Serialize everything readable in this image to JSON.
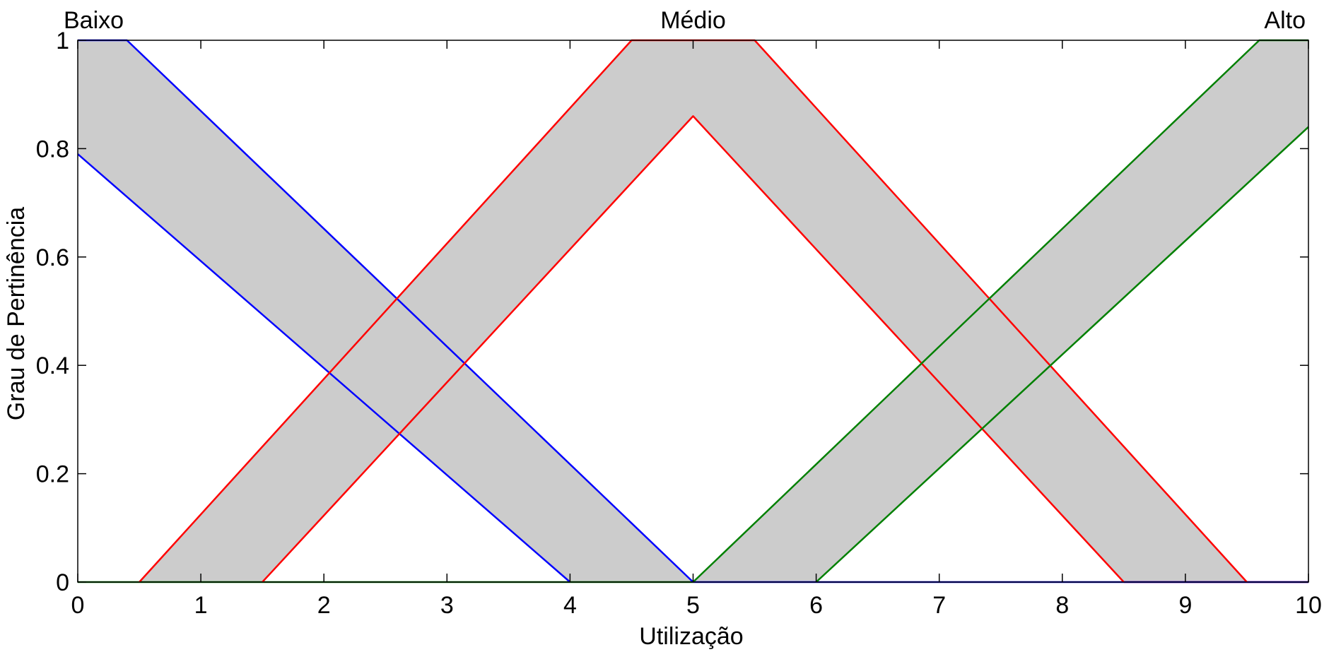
{
  "chart_data": {
    "type": "line",
    "title": "",
    "xlabel": "Utilização",
    "ylabel": "Grau de Pertinência",
    "xlim": [
      0,
      10
    ],
    "ylim": [
      0,
      1
    ],
    "x_ticks": [
      0,
      1,
      2,
      3,
      4,
      5,
      6,
      7,
      8,
      9,
      10
    ],
    "y_ticks": [
      0,
      0.2,
      0.4,
      0.6,
      0.8,
      1
    ],
    "grid": false,
    "fill_color": "#cccccc",
    "category_labels": [
      "Baixo",
      "Médio",
      "Alto"
    ],
    "series": [
      {
        "color": "#0000ff",
        "fill_between": [
          0,
          1
        ],
        "lines": [
          {
            "x": [
              0,
              0.4,
              5
            ],
            "y": [
              1,
              1,
              0
            ]
          },
          {
            "x": [
              0,
              4
            ],
            "y": [
              0.79,
              0
            ]
          }
        ]
      },
      {
        "color": "#ff0000",
        "fill_between": [
          0,
          1
        ],
        "lines": [
          {
            "x": [
              0.5,
              4.5,
              5.5,
              9.5
            ],
            "y": [
              0,
              1,
              1,
              0
            ]
          },
          {
            "x": [
              1.5,
              5,
              8.5
            ],
            "y": [
              0,
              0.86,
              0
            ]
          }
        ]
      },
      {
        "color": "#008000",
        "fill_between": [
          0,
          1
        ],
        "lines": [
          {
            "x": [
              5,
              9.6,
              10
            ],
            "y": [
              0,
              1,
              1
            ]
          },
          {
            "x": [
              6,
              10
            ],
            "y": [
              0,
              0.84
            ]
          }
        ]
      }
    ],
    "zero_lines": [
      {
        "color": "#ff0000",
        "x": [
          8.5,
          10
        ],
        "y": [
          0,
          0
        ]
      },
      {
        "color": "#0000ff",
        "x": [
          5,
          10
        ],
        "y": [
          0,
          0
        ]
      },
      {
        "color": "#008000",
        "x": [
          0,
          5
        ],
        "y": [
          0,
          0
        ]
      }
    ]
  }
}
